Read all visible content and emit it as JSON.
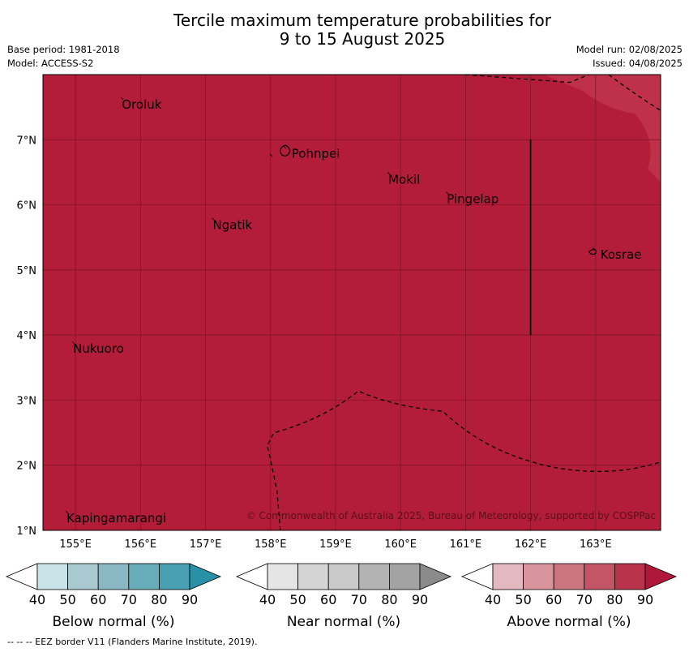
{
  "title_line1": "Tercile maximum temperature probabilities for",
  "title_line2": "9 to 15 August 2025",
  "meta_left": [
    "Base period: 1981-2018",
    "Model: ACCESS-S2"
  ],
  "meta_right": [
    "Model run: 02/08/2025",
    "Issued: 04/08/2025"
  ],
  "map": {
    "lon_range": [
      154.5,
      164.0
    ],
    "lat_range": [
      1.0,
      8.0
    ],
    "x_ticks": [
      "155°E",
      "156°E",
      "157°E",
      "158°E",
      "159°E",
      "160°E",
      "161°E",
      "162°E",
      "163°E"
    ],
    "y_ticks": [
      "1°N",
      "2°N",
      "3°N",
      "4°N",
      "5°N",
      "6°N",
      "7°N"
    ],
    "fill_color": "#b31d3a",
    "grid_color": "#7a1326",
    "places": [
      {
        "name": "Oroluk",
        "lon": 155.7,
        "lat": 7.6
      },
      {
        "name": "Pohnpei",
        "lon": 158.2,
        "lat": 6.85
      },
      {
        "name": "Mokil",
        "lon": 159.8,
        "lat": 6.45
      },
      {
        "name": "Pingelap",
        "lon": 160.7,
        "lat": 6.15
      },
      {
        "name": "Ngatik",
        "lon": 157.1,
        "lat": 5.75
      },
      {
        "name": "Kosrae",
        "lon": 162.95,
        "lat": 5.3
      },
      {
        "name": "Nukuoro",
        "lon": 154.95,
        "lat": 3.85
      },
      {
        "name": "Kapingamarangi",
        "lon": 154.85,
        "lat": 1.25
      }
    ],
    "copyright": "© Commonwealth of Australia 2025, Bureau of Meteorology, supported by COSPPac"
  },
  "legends": [
    {
      "title": "Below normal (%)",
      "colors": [
        "#ffffff",
        "#cae3e8",
        "#a7c9cf",
        "#8ab8c2",
        "#68abb9",
        "#489fb2",
        "#2a90a8"
      ]
    },
    {
      "title": "Near normal (%)",
      "colors": [
        "#ffffff",
        "#e5e5e5",
        "#d4d4d4",
        "#c9c9c9",
        "#b3b3b3",
        "#a3a3a3",
        "#8a8a8a"
      ]
    },
    {
      "title": "Above normal (%)",
      "colors": [
        "#ffffff",
        "#e3b8bf",
        "#d8959e",
        "#cc7680",
        "#c35566",
        "#b83249",
        "#b0183a"
      ]
    }
  ],
  "legend_ticks": [
    "40",
    "50",
    "60",
    "70",
    "80",
    "90"
  ],
  "footnote": "-- -- -- EEZ border V11 (Flanders Marine Institute, 2019)."
}
